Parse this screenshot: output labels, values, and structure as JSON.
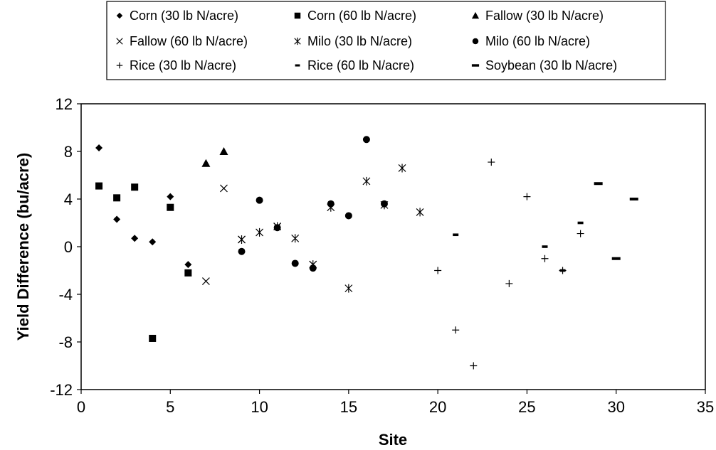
{
  "chart_data": {
    "type": "scatter",
    "title": "",
    "xlabel": "Site",
    "ylabel": "Yield Difference (bu/acre)",
    "xlim": [
      0,
      35
    ],
    "ylim": [
      -12,
      12
    ],
    "xticks": [
      0,
      5,
      10,
      15,
      20,
      25,
      30,
      35
    ],
    "yticks": [
      -12,
      -8,
      -4,
      0,
      4,
      8,
      12
    ],
    "grid": false,
    "legend_position": "top",
    "series": [
      {
        "name": "Corn (30 lb N/acre)",
        "marker": "diamond",
        "points": [
          [
            1,
            8.3
          ],
          [
            2,
            2.3
          ],
          [
            3,
            0.7
          ],
          [
            4,
            0.4
          ],
          [
            5,
            4.2
          ],
          [
            6,
            -1.5
          ]
        ]
      },
      {
        "name": "Corn (60 lb N/acre)",
        "marker": "square",
        "points": [
          [
            1,
            5.1
          ],
          [
            2,
            4.1
          ],
          [
            3,
            5.0
          ],
          [
            4,
            -7.7
          ],
          [
            5,
            3.3
          ],
          [
            6,
            -2.2
          ]
        ]
      },
      {
        "name": "Fallow (30 lb N/acre)",
        "marker": "triangle",
        "points": [
          [
            7,
            7.0
          ],
          [
            8,
            8.0
          ]
        ]
      },
      {
        "name": "Fallow (60 lb N/acre)",
        "marker": "x",
        "points": [
          [
            7,
            -2.9
          ],
          [
            8,
            4.9
          ],
          [
            9,
            0.6
          ],
          [
            11,
            1.7
          ],
          [
            13,
            -1.5
          ]
        ]
      },
      {
        "name": "Milo (30 lb N/acre)",
        "marker": "star",
        "points": [
          [
            9,
            0.6
          ],
          [
            10,
            1.2
          ],
          [
            11,
            1.7
          ],
          [
            12,
            0.7
          ],
          [
            13,
            -1.5
          ],
          [
            14,
            3.3
          ],
          [
            15,
            -3.5
          ],
          [
            16,
            5.5
          ],
          [
            17,
            3.5
          ],
          [
            18,
            6.6
          ],
          [
            19,
            2.9
          ]
        ]
      },
      {
        "name": "Milo (60 lb N/acre)",
        "marker": "circle",
        "points": [
          [
            9,
            -0.4
          ],
          [
            10,
            3.9
          ],
          [
            11,
            1.6
          ],
          [
            12,
            -1.4
          ],
          [
            13,
            -1.8
          ],
          [
            14,
            3.6
          ],
          [
            15,
            2.6
          ],
          [
            16,
            9.0
          ],
          [
            17,
            3.6
          ]
        ]
      },
      {
        "name": "Rice (30 lb N/acre)",
        "marker": "plus",
        "points": [
          [
            20,
            -2.0
          ],
          [
            21,
            -7.0
          ],
          [
            22,
            -10.0
          ],
          [
            23,
            7.1
          ],
          [
            24,
            -3.1
          ],
          [
            25,
            4.2
          ],
          [
            26,
            -1.0
          ],
          [
            27,
            -2.0
          ],
          [
            28,
            1.1
          ]
        ]
      },
      {
        "name": "Rice (60 lb N/acre)",
        "marker": "dash",
        "points": [
          [
            21,
            1.0
          ],
          [
            26,
            0.0
          ],
          [
            27,
            -2.0
          ],
          [
            28,
            2.0
          ]
        ]
      },
      {
        "name": "Soybean (30 lb N/acre)",
        "marker": "bigdash",
        "points": [
          [
            29,
            5.3
          ],
          [
            30,
            -1.0
          ],
          [
            31,
            4.0
          ]
        ]
      }
    ]
  }
}
